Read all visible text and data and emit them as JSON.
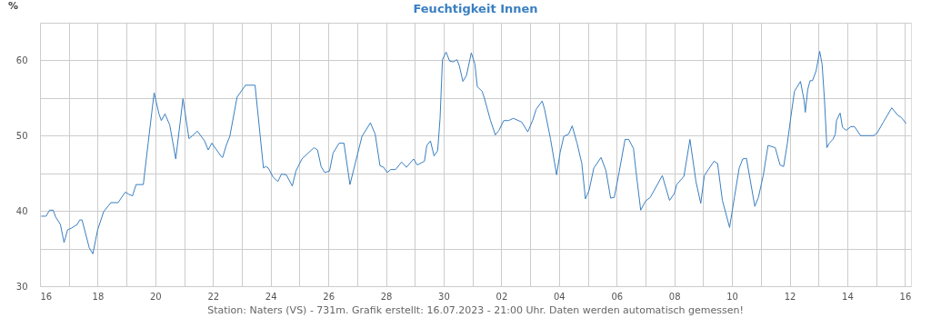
{
  "chart_data": {
    "type": "line",
    "title": "Feuchtigkeit Innen",
    "ylabel": "%",
    "annotations": [
      "Station: Naters (VS) - 731m. Grafik erstellt: 16.07.2023 - 21:00 Uhr. Daten werden automatisch gemessen!"
    ],
    "x": [
      "2023-06-16T01:00",
      "2023-06-16T05:00",
      "2023-06-16T08:00",
      "2023-06-16T11:00",
      "2023-06-16T13:00",
      "2023-06-16T17:00",
      "2023-06-16T20:00",
      "2023-06-16T23:00",
      "2023-06-17T02:00",
      "2023-06-17T07:00",
      "2023-06-17T09:00",
      "2023-06-17T11:00",
      "2023-06-17T17:00",
      "2023-06-17T20:00",
      "2023-06-18T00:00",
      "2023-06-18T05:00",
      "2023-06-18T11:00",
      "2023-06-18T17:00",
      "2023-06-18T23:00",
      "2023-06-19T02:00",
      "2023-06-19T05:00",
      "2023-06-19T08:00",
      "2023-06-19T14:00",
      "2023-06-19T18:00",
      "2023-06-19T23:00",
      "2023-06-20T03:00",
      "2023-06-20T05:00",
      "2023-06-20T08:00",
      "2023-06-20T12:00",
      "2023-06-20T17:00",
      "2023-06-20T23:00",
      "2023-06-21T04:00",
      "2023-06-21T07:00",
      "2023-06-21T11:00",
      "2023-06-21T17:00",
      "2023-06-21T20:00",
      "2023-06-21T23:00",
      "2023-06-22T07:00",
      "2023-06-22T08:00",
      "2023-06-22T11:00",
      "2023-06-22T14:00",
      "2023-06-22T20:00",
      "2023-06-23T03:00",
      "2023-06-23T06:00",
      "2023-06-23T11:00",
      "2023-06-23T18:00",
      "2023-06-23T20:00",
      "2023-06-23T22:00",
      "2023-06-24T02:00",
      "2023-06-24T06:00",
      "2023-06-24T09:00",
      "2023-06-24T13:00",
      "2023-06-24T18:00",
      "2023-06-24T21:00",
      "2023-06-25T02:00",
      "2023-06-25T12:00",
      "2023-06-25T15:00",
      "2023-06-25T18:00",
      "2023-06-25T21:00",
      "2023-06-26T01:00",
      "2023-06-26T04:00",
      "2023-06-26T09:00",
      "2023-06-26T13:00",
      "2023-06-26T18:00",
      "2023-06-27T04:00",
      "2023-06-27T11:00",
      "2023-06-27T15:00",
      "2023-06-27T19:00",
      "2023-06-27T22:00",
      "2023-06-28T01:00",
      "2023-06-28T04:00",
      "2023-06-28T08:00",
      "2023-06-28T13:00",
      "2023-06-28T17:00",
      "2023-06-28T23:00",
      "2023-06-29T02:00",
      "2023-06-29T08:00",
      "2023-06-29T10:00",
      "2023-06-29T13:00",
      "2023-06-29T16:00",
      "2023-06-29T19:00",
      "2023-06-29T21:00",
      "2023-06-29T23:00",
      "2023-06-30T02:00",
      "2023-06-30T05:00",
      "2023-06-30T08:00",
      "2023-06-30T11:00",
      "2023-06-30T13:00",
      "2023-06-30T16:00",
      "2023-06-30T19:00",
      "2023-06-30T23:00",
      "2023-07-01T02:00",
      "2023-07-01T04:00",
      "2023-07-01T08:00",
      "2023-07-01T10:00",
      "2023-07-01T15:00",
      "2023-07-01T19:00",
      "2023-07-01T22:00",
      "2023-07-02T02:00",
      "2023-07-02T06:00",
      "2023-07-02T10:00",
      "2023-07-02T17:00",
      "2023-07-02T22:00",
      "2023-07-03T02:00",
      "2023-07-03T05:00",
      "2023-07-03T10:00",
      "2023-07-03T12:00",
      "2023-07-03T17:00",
      "2023-07-03T22:00",
      "2023-07-04T01:00",
      "2023-07-04T04:00",
      "2023-07-04T08:00",
      "2023-07-04T11:00",
      "2023-07-04T15:00",
      "2023-07-04T19:00",
      "2023-07-04T22:00",
      "2023-07-05T01:00",
      "2023-07-05T05:00",
      "2023-07-05T11:00",
      "2023-07-05T15:00",
      "2023-07-05T19:00",
      "2023-07-05T22:00",
      "2023-07-06T02:00",
      "2023-07-06T07:00",
      "2023-07-06T10:00",
      "2023-07-06T14:00",
      "2023-07-06T16:00",
      "2023-07-06T20:00",
      "2023-07-07T00:00",
      "2023-07-07T04:00",
      "2023-07-07T14:00",
      "2023-07-07T20:00",
      "2023-07-08T00:00",
      "2023-07-08T02:00",
      "2023-07-08T08:00",
      "2023-07-08T13:00",
      "2023-07-08T18:00",
      "2023-07-08T22:00",
      "2023-07-09T01:00",
      "2023-07-09T09:00",
      "2023-07-09T12:00",
      "2023-07-09T16:00",
      "2023-07-09T22:00",
      "2023-07-10T02:00",
      "2023-07-10T06:00",
      "2023-07-10T09:00",
      "2023-07-10T12:00",
      "2023-07-10T19:00",
      "2023-07-10T22:00",
      "2023-07-11T02:00",
      "2023-07-11T06:00",
      "2023-07-11T12:00",
      "2023-07-11T16:00",
      "2023-07-11T19:00",
      "2023-07-11T22:00",
      "2023-07-12T01:00",
      "2023-07-12T04:00",
      "2023-07-12T09:00",
      "2023-07-12T12:00",
      "2023-07-12T13:00",
      "2023-07-12T15:00",
      "2023-07-12T17:00",
      "2023-07-12T19:00",
      "2023-07-12T22:00",
      "2023-07-13T01:00",
      "2023-07-13T03:00",
      "2023-07-13T05:00",
      "2023-07-13T07:00",
      "2023-07-13T09:00",
      "2023-07-13T12:00",
      "2023-07-13T14:00",
      "2023-07-13T15:00",
      "2023-07-13T18:00",
      "2023-07-13T20:00",
      "2023-07-13T23:00",
      "2023-07-14T03:00",
      "2023-07-14T06:00",
      "2023-07-14T11:00",
      "2023-07-14T22:00",
      "2023-07-15T01:00",
      "2023-07-15T06:00",
      "2023-07-15T13:00",
      "2023-07-15T18:00",
      "2023-07-15T21:00",
      "2023-07-16T01:00"
    ],
    "series": [
      {
        "color": "#3a7fc1",
        "values": [
          39.3,
          39.3,
          40.1,
          40.1,
          39.2,
          38.2,
          35.8,
          37.5,
          37.7,
          38.2,
          38.8,
          38.8,
          35.1,
          34.3,
          37.5,
          39.9,
          41.1,
          41.1,
          42.5,
          42.2,
          42.0,
          43.5,
          43.5,
          49.0,
          55.7,
          52.9,
          52.0,
          52.9,
          51.4,
          46.9,
          54.9,
          49.6,
          50.0,
          50.6,
          49.3,
          48.1,
          49.0,
          47.2,
          47.1,
          48.7,
          49.9,
          55.1,
          56.7,
          56.7,
          56.7,
          45.7,
          45.9,
          45.7,
          44.5,
          43.9,
          44.9,
          44.8,
          43.3,
          45.3,
          46.9,
          48.4,
          48.1,
          45.9,
          45.1,
          45.3,
          47.7,
          49.0,
          49.0,
          43.5,
          49.9,
          51.7,
          50.2,
          46.0,
          45.8,
          45.1,
          45.5,
          45.5,
          46.5,
          45.8,
          46.9,
          46.1,
          46.6,
          48.7,
          49.3,
          47.3,
          48.0,
          52.3,
          60.1,
          61.1,
          59.9,
          59.8,
          60.1,
          59.3,
          57.2,
          58.0,
          61.0,
          59.5,
          56.5,
          55.9,
          54.9,
          52.0,
          50.1,
          50.7,
          52.0,
          52.0,
          52.3,
          51.8,
          50.5,
          52.0,
          53.5,
          54.6,
          53.5,
          49.5,
          44.8,
          47.8,
          49.9,
          50.2,
          51.3,
          49.0,
          46.3,
          41.6,
          42.7,
          45.7,
          47.1,
          45.4,
          41.7,
          41.8,
          45.1,
          49.5,
          49.5,
          48.3,
          45.4,
          40.1,
          41.3,
          41.8,
          44.7,
          41.4,
          42.3,
          43.5,
          44.6,
          49.5,
          43.9,
          41.0,
          44.7,
          46.6,
          46.3,
          41.4,
          37.8,
          41.8,
          45.7,
          46.9,
          47.0,
          40.6,
          41.8,
          44.7,
          48.7,
          48.4,
          46.1,
          45.9,
          48.9,
          52.5,
          55.9,
          57.2,
          54.7,
          53.1,
          56.1,
          57.3,
          57.3,
          58.6,
          61.2,
          59.5,
          54.7,
          48.4,
          49.0,
          49.5,
          50.2,
          52.0,
          53.0,
          51.1,
          50.7,
          51.2,
          51.2,
          50.0,
          50.0,
          50.4,
          51.8,
          53.7,
          52.7,
          52.4,
          51.6
        ]
      }
    ],
    "xlim": [
      "2023-06-16T00:00",
      "2023-07-16T05:00"
    ],
    "xticks": [
      {
        "value": "2023-06-16",
        "label": "16"
      },
      {
        "value": "2023-06-17",
        "label": null
      },
      {
        "value": "2023-06-18",
        "label": "18"
      },
      {
        "value": "2023-06-19",
        "label": null
      },
      {
        "value": "2023-06-20",
        "label": "20"
      },
      {
        "value": "2023-06-21",
        "label": null
      },
      {
        "value": "2023-06-22",
        "label": "22"
      },
      {
        "value": "2023-06-23",
        "label": null
      },
      {
        "value": "2023-06-24",
        "label": "24"
      },
      {
        "value": "2023-06-25",
        "label": null
      },
      {
        "value": "2023-06-26",
        "label": "26"
      },
      {
        "value": "2023-06-27",
        "label": null
      },
      {
        "value": "2023-06-28",
        "label": "28"
      },
      {
        "value": "2023-06-29",
        "label": null
      },
      {
        "value": "2023-06-30",
        "label": "30"
      },
      {
        "value": "2023-07-01",
        "label": null
      },
      {
        "value": "2023-07-02",
        "label": "02"
      },
      {
        "value": "2023-07-03",
        "label": null
      },
      {
        "value": "2023-07-04",
        "label": "04"
      },
      {
        "value": "2023-07-05",
        "label": null
      },
      {
        "value": "2023-07-06",
        "label": "06"
      },
      {
        "value": "2023-07-07",
        "label": null
      },
      {
        "value": "2023-07-08",
        "label": "08"
      },
      {
        "value": "2023-07-09",
        "label": null
      },
      {
        "value": "2023-07-10",
        "label": "10"
      },
      {
        "value": "2023-07-11",
        "label": null
      },
      {
        "value": "2023-07-12",
        "label": "12"
      },
      {
        "value": "2023-07-13",
        "label": null
      },
      {
        "value": "2023-07-14",
        "label": "14"
      },
      {
        "value": "2023-07-15",
        "label": null
      },
      {
        "value": "2023-07-16",
        "label": "16"
      }
    ],
    "ylim": [
      30,
      65
    ],
    "yticks": [
      30,
      {
        "value": 35,
        "label": null
      },
      40,
      {
        "value": 45,
        "label": null
      },
      50,
      {
        "value": 55,
        "label": null
      },
      60,
      {
        "value": 65,
        "label": null
      }
    ],
    "grid": true,
    "marker": "none",
    "line_style": "solid"
  }
}
